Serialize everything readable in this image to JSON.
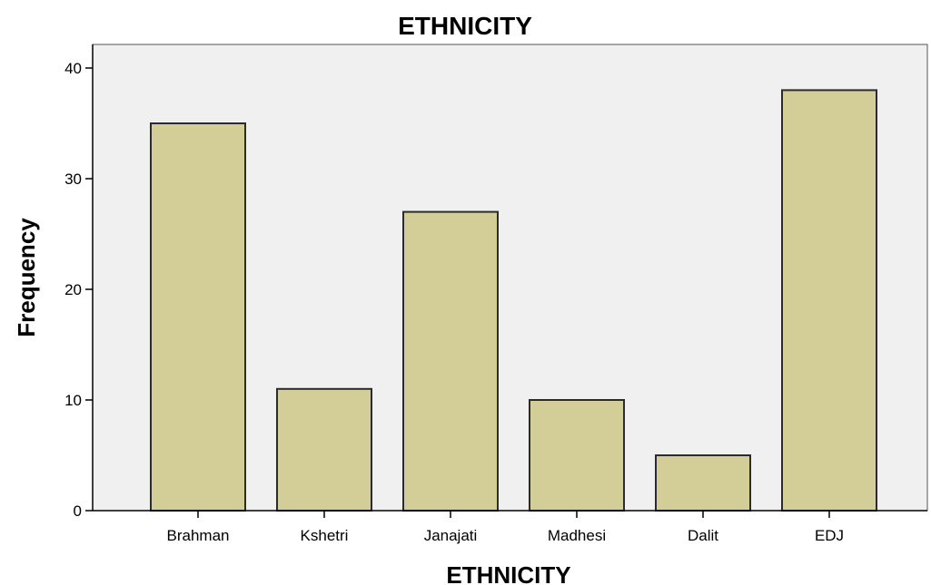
{
  "chart_data": {
    "type": "bar",
    "title": "ETHNICITY",
    "xlabel": "ETHNICITY",
    "ylabel": "Frequency",
    "categories": [
      "Brahman",
      "Kshetri",
      "Janajati",
      "Madhesi",
      "Dalit",
      "EDJ"
    ],
    "values": [
      35,
      11,
      27,
      10,
      5,
      38
    ],
    "ylim": [
      0,
      40
    ],
    "yticks": [
      "0",
      "10",
      "20",
      "30",
      "40"
    ],
    "grid": false,
    "legend": "none",
    "colors": {
      "bar_fill": "#D3CE97",
      "bar_stroke": "#2B2B2B",
      "plot_background": "#F0F0F0",
      "axis": "#000000"
    }
  }
}
